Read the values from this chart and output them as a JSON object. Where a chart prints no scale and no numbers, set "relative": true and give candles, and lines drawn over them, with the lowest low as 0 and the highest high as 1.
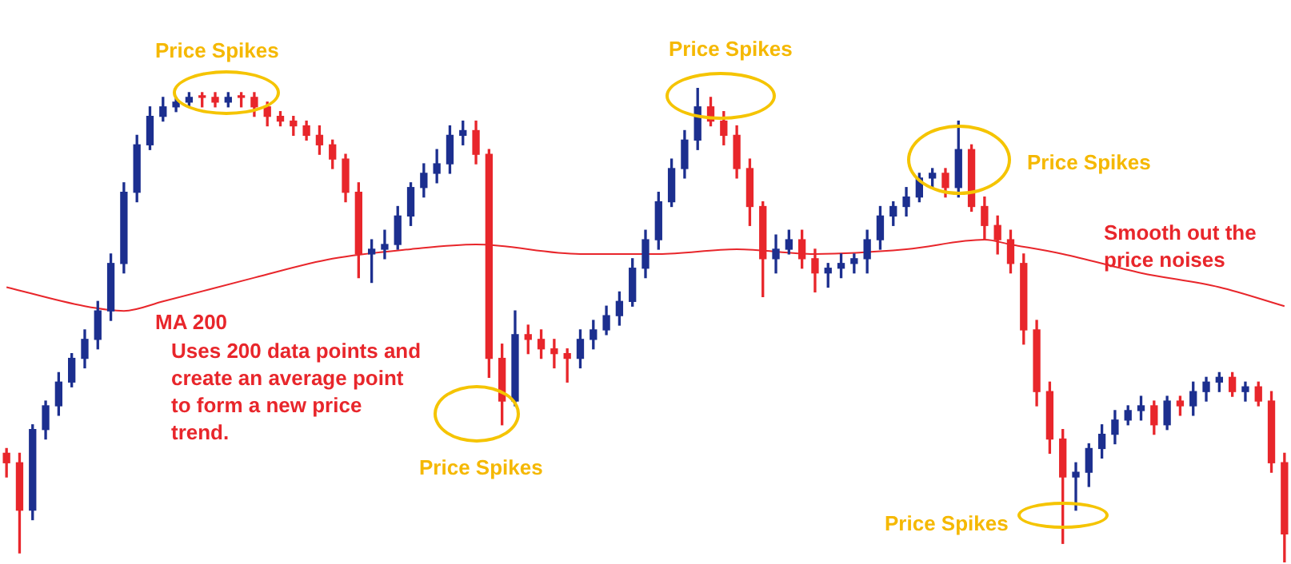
{
  "chart_data": {
    "type": "candlestick",
    "relative": true,
    "categories": [
      null,
      null,
      null,
      null,
      null,
      null,
      null,
      null,
      null,
      null,
      null,
      null,
      null,
      null,
      null,
      null,
      null,
      null,
      null,
      null,
      null,
      null,
      null,
      null,
      null,
      null,
      null,
      null,
      null,
      null,
      null,
      null,
      null,
      null,
      null,
      null,
      null,
      null,
      null,
      null,
      null,
      null,
      null,
      null,
      null,
      null,
      null,
      null,
      null,
      null,
      null,
      null,
      null,
      null,
      null,
      null,
      null,
      null,
      null,
      null,
      null,
      null,
      null,
      null,
      null,
      null,
      null,
      null,
      null,
      null,
      null,
      null,
      null,
      null,
      null,
      null,
      null,
      null,
      null,
      null,
      null,
      null,
      null,
      null,
      null,
      null,
      null,
      null,
      null,
      null,
      null,
      null,
      null,
      null,
      null,
      null,
      null,
      null,
      null
    ],
    "ohlc": [
      [
        0.23,
        0.24,
        0.18,
        0.21
      ],
      [
        0.21,
        0.23,
        0.02,
        0.11
      ],
      [
        0.11,
        0.29,
        0.09,
        0.28
      ],
      [
        0.28,
        0.34,
        0.26,
        0.33
      ],
      [
        0.33,
        0.4,
        0.31,
        0.38
      ],
      [
        0.38,
        0.44,
        0.37,
        0.43
      ],
      [
        0.43,
        0.49,
        0.41,
        0.47
      ],
      [
        0.47,
        0.55,
        0.45,
        0.53
      ],
      [
        0.53,
        0.65,
        0.51,
        0.63
      ],
      [
        0.63,
        0.8,
        0.61,
        0.78
      ],
      [
        0.78,
        0.9,
        0.76,
        0.88
      ],
      [
        0.88,
        0.96,
        0.87,
        0.94
      ],
      [
        0.94,
        0.98,
        0.93,
        0.96
      ],
      [
        0.96,
        0.98,
        0.95,
        0.97
      ],
      [
        0.97,
        0.99,
        0.96,
        0.98
      ],
      [
        0.98,
        0.99,
        0.96,
        0.98
      ],
      [
        0.98,
        0.99,
        0.96,
        0.97
      ],
      [
        0.97,
        0.99,
        0.96,
        0.98
      ],
      [
        0.98,
        0.99,
        0.96,
        0.98
      ],
      [
        0.98,
        0.99,
        0.94,
        0.96
      ],
      [
        0.96,
        0.97,
        0.92,
        0.94
      ],
      [
        0.94,
        0.95,
        0.92,
        0.93
      ],
      [
        0.93,
        0.94,
        0.9,
        0.92
      ],
      [
        0.92,
        0.93,
        0.89,
        0.9
      ],
      [
        0.9,
        0.92,
        0.86,
        0.88
      ],
      [
        0.88,
        0.89,
        0.83,
        0.85
      ],
      [
        0.85,
        0.86,
        0.76,
        0.78
      ],
      [
        0.78,
        0.8,
        0.6,
        0.65
      ],
      [
        0.65,
        0.68,
        0.59,
        0.66
      ],
      [
        0.66,
        0.7,
        0.64,
        0.67
      ],
      [
        0.67,
        0.75,
        0.66,
        0.73
      ],
      [
        0.73,
        0.8,
        0.71,
        0.79
      ],
      [
        0.79,
        0.84,
        0.77,
        0.82
      ],
      [
        0.82,
        0.87,
        0.8,
        0.84
      ],
      [
        0.84,
        0.92,
        0.82,
        0.9
      ],
      [
        0.9,
        0.93,
        0.88,
        0.91
      ],
      [
        0.91,
        0.93,
        0.84,
        0.86
      ],
      [
        0.86,
        0.87,
        0.39,
        0.43
      ],
      [
        0.43,
        0.46,
        0.29,
        0.34
      ],
      [
        0.34,
        0.53,
        0.33,
        0.48
      ],
      [
        0.48,
        0.5,
        0.44,
        0.47
      ],
      [
        0.47,
        0.49,
        0.43,
        0.45
      ],
      [
        0.45,
        0.47,
        0.41,
        0.44
      ],
      [
        0.44,
        0.45,
        0.38,
        0.43
      ],
      [
        0.43,
        0.49,
        0.41,
        0.47
      ],
      [
        0.47,
        0.51,
        0.45,
        0.49
      ],
      [
        0.49,
        0.54,
        0.48,
        0.52
      ],
      [
        0.52,
        0.57,
        0.5,
        0.55
      ],
      [
        0.55,
        0.64,
        0.54,
        0.62
      ],
      [
        0.62,
        0.7,
        0.6,
        0.68
      ],
      [
        0.68,
        0.78,
        0.66,
        0.76
      ],
      [
        0.76,
        0.85,
        0.75,
        0.83
      ],
      [
        0.83,
        0.91,
        0.81,
        0.89
      ],
      [
        0.89,
        1,
        0.87,
        0.96
      ],
      [
        0.96,
        0.98,
        0.92,
        0.93
      ],
      [
        0.93,
        0.95,
        0.88,
        0.9
      ],
      [
        0.9,
        0.92,
        0.81,
        0.83
      ],
      [
        0.83,
        0.85,
        0.71,
        0.75
      ],
      [
        0.75,
        0.76,
        0.56,
        0.64
      ],
      [
        0.64,
        0.69,
        0.61,
        0.66
      ],
      [
        0.66,
        0.7,
        0.65,
        0.68
      ],
      [
        0.68,
        0.7,
        0.62,
        0.64
      ],
      [
        0.64,
        0.66,
        0.57,
        0.61
      ],
      [
        0.61,
        0.63,
        0.58,
        0.62
      ],
      [
        0.62,
        0.65,
        0.6,
        0.63
      ],
      [
        0.63,
        0.65,
        0.61,
        0.64
      ],
      [
        0.64,
        0.7,
        0.61,
        0.68
      ],
      [
        0.68,
        0.75,
        0.66,
        0.73
      ],
      [
        0.73,
        0.76,
        0.71,
        0.75
      ],
      [
        0.75,
        0.79,
        0.73,
        0.77
      ],
      [
        0.77,
        0.82,
        0.76,
        0.81
      ],
      [
        0.81,
        0.83,
        0.79,
        0.82
      ],
      [
        0.82,
        0.83,
        0.77,
        0.79
      ],
      [
        0.79,
        0.93,
        0.77,
        0.87
      ],
      [
        0.87,
        0.88,
        0.74,
        0.75
      ],
      [
        0.75,
        0.77,
        0.68,
        0.71
      ],
      [
        0.71,
        0.73,
        0.65,
        0.68
      ],
      [
        0.68,
        0.7,
        0.61,
        0.63
      ],
      [
        0.63,
        0.65,
        0.46,
        0.49
      ],
      [
        0.49,
        0.51,
        0.33,
        0.36
      ],
      [
        0.36,
        0.38,
        0.23,
        0.26
      ],
      [
        0.26,
        0.28,
        0.04,
        0.18
      ],
      [
        0.18,
        0.21,
        0.11,
        0.19
      ],
      [
        0.19,
        0.25,
        0.16,
        0.24
      ],
      [
        0.24,
        0.29,
        0.22,
        0.27
      ],
      [
        0.27,
        0.32,
        0.25,
        0.3
      ],
      [
        0.3,
        0.33,
        0.29,
        0.32
      ],
      [
        0.32,
        0.35,
        0.3,
        0.33
      ],
      [
        0.33,
        0.34,
        0.27,
        0.29
      ],
      [
        0.29,
        0.35,
        0.28,
        0.34
      ],
      [
        0.34,
        0.35,
        0.31,
        0.33
      ],
      [
        0.33,
        0.38,
        0.31,
        0.36
      ],
      [
        0.36,
        0.39,
        0.34,
        0.38
      ],
      [
        0.38,
        0.4,
        0.36,
        0.39
      ],
      [
        0.39,
        0.4,
        0.35,
        0.36
      ],
      [
        0.36,
        0.38,
        0.34,
        0.37
      ],
      [
        0.37,
        0.38,
        0.33,
        0.34
      ],
      [
        0.34,
        0.36,
        0.19,
        0.21
      ],
      [
        0.21,
        0.23,
        0,
        0.06
      ]
    ],
    "colors": [
      "#e8262b",
      "#e8262b",
      "#1c2f8f",
      "#1c2f8f",
      "#1c2f8f",
      "#1c2f8f",
      "#1c2f8f",
      "#1c2f8f",
      "#1c2f8f",
      "#1c2f8f",
      "#1c2f8f",
      "#1c2f8f",
      "#1c2f8f",
      "#1c2f8f",
      "#1c2f8f",
      "#e8262b",
      "#e8262b",
      "#1c2f8f",
      "#e8262b",
      "#e8262b",
      "#e8262b",
      "#e8262b",
      "#e8262b",
      "#e8262b",
      "#e8262b",
      "#e8262b",
      "#e8262b",
      "#e8262b",
      "#1c2f8f",
      "#1c2f8f",
      "#1c2f8f",
      "#1c2f8f",
      "#1c2f8f",
      "#1c2f8f",
      "#1c2f8f",
      "#1c2f8f",
      "#e8262b",
      "#e8262b",
      "#e8262b",
      "#1c2f8f",
      "#e8262b",
      "#e8262b",
      "#e8262b",
      "#e8262b",
      "#1c2f8f",
      "#1c2f8f",
      "#1c2f8f",
      "#1c2f8f",
      "#1c2f8f",
      "#1c2f8f",
      "#1c2f8f",
      "#1c2f8f",
      "#1c2f8f",
      "#1c2f8f",
      "#e8262b",
      "#e8262b",
      "#e8262b",
      "#e8262b",
      "#e8262b",
      "#1c2f8f",
      "#1c2f8f",
      "#e8262b",
      "#e8262b",
      "#1c2f8f",
      "#1c2f8f",
      "#1c2f8f",
      "#1c2f8f",
      "#1c2f8f",
      "#1c2f8f",
      "#1c2f8f",
      "#1c2f8f",
      "#1c2f8f",
      "#e8262b",
      "#1c2f8f",
      "#e8262b",
      "#e8262b",
      "#e8262b",
      "#e8262b",
      "#e8262b",
      "#e8262b",
      "#e8262b",
      "#e8262b",
      "#1c2f8f",
      "#1c2f8f",
      "#1c2f8f",
      "#1c2f8f",
      "#1c2f8f",
      "#1c2f8f",
      "#e8262b",
      "#1c2f8f",
      "#e8262b",
      "#1c2f8f",
      "#1c2f8f",
      "#1c2f8f",
      "#e8262b",
      "#1c2f8f",
      "#e8262b",
      "#e8262b",
      "#e8262b"
    ],
    "series": [
      {
        "type": "line",
        "color": "#e8262b",
        "values": [
          0.58,
          null,
          null,
          null,
          null,
          null,
          0.54,
          null,
          null,
          0.53,
          null,
          null,
          0.55,
          null,
          null,
          null,
          null,
          null,
          null,
          0.6,
          null,
          null,
          null,
          null,
          null,
          0.64,
          null,
          null,
          null,
          null,
          null,
          0.66,
          null,
          null,
          null,
          null,
          0.67,
          null,
          null,
          null,
          null,
          null,
          null,
          null,
          0.65,
          null,
          null,
          null,
          null,
          null,
          0.65,
          null,
          null,
          null,
          null,
          null,
          0.66,
          null,
          null,
          null,
          null,
          null,
          0.65,
          null,
          null,
          null,
          null,
          null,
          null,
          0.66,
          null,
          null,
          null,
          null,
          null,
          0.68,
          null,
          0.67,
          null,
          null,
          null,
          0.65,
          null,
          null,
          null,
          null,
          null,
          0.61,
          null,
          null,
          null,
          null,
          null,
          0.58,
          null,
          null,
          null,
          null,
          0.54
        ]
      }
    ],
    "annotations": [
      "Price Spikes",
      "Price Spikes",
      "Price Spikes",
      "Smooth out the price noises",
      "MA 200",
      "Uses 200 data points and create an average point to form a new price trend.",
      "Price Spikes",
      "Price Spikes"
    ]
  }
}
